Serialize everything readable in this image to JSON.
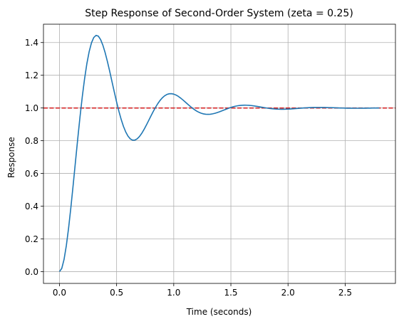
{
  "chart_data": {
    "type": "line",
    "title": "Step Response of Second-Order System (zeta = 0.25)",
    "xlabel": "Time (seconds)",
    "ylabel": "Response",
    "xlim": [
      -0.14,
      2.94
    ],
    "ylim": [
      -0.072,
      1.512
    ],
    "grid": true,
    "x_ticks": [
      0.0,
      0.5,
      1.0,
      1.5,
      2.0,
      2.5
    ],
    "x_tick_labels": [
      "0.0",
      "0.5",
      "1.0",
      "1.5",
      "2.0",
      "2.5"
    ],
    "y_ticks": [
      0.0,
      0.2,
      0.4,
      0.6,
      0.8,
      1.0,
      1.2,
      1.4
    ],
    "y_tick_labels": [
      "0.0",
      "0.2",
      "0.4",
      "0.6",
      "0.8",
      "1.0",
      "1.2",
      "1.4"
    ],
    "series": [
      {
        "style": "solid",
        "color": "#1f77b4",
        "zeta": 0.25,
        "wn": 10.0,
        "t_start": 0.0,
        "t_end": 2.8,
        "samples": 141
      }
    ],
    "reference_line": {
      "y": 1.0,
      "color": "#d62728",
      "style": "dashed"
    }
  }
}
